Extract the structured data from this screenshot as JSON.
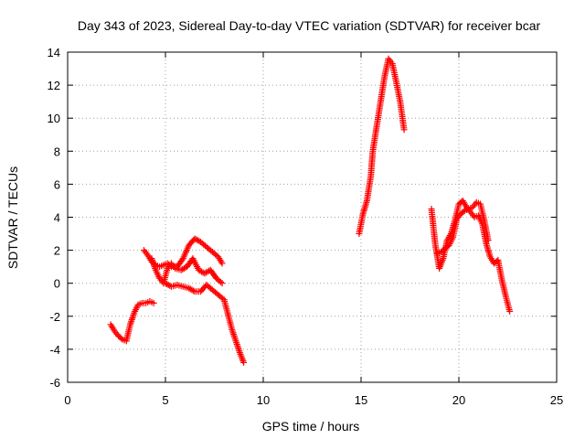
{
  "chart_data": {
    "type": "scatter",
    "title": "Day 343 of 2023, Sidereal Day-to-day VTEC variation (SDTVAR) for receiver bcar",
    "xlabel": "GPS time / hours",
    "ylabel": "SDTVAR / TECUs",
    "xlim": [
      0,
      25
    ],
    "ylim": [
      -6,
      14
    ],
    "xticks": [
      "0",
      "5",
      "10",
      "15",
      "20",
      "25"
    ],
    "yticks": [
      "-6",
      "-4",
      "-2",
      "0",
      "2",
      "4",
      "6",
      "8",
      "10",
      "12",
      "14"
    ],
    "grid": true,
    "marker": "+",
    "color": "#ff0000",
    "series": [
      {
        "x": [
          2.2,
          2.4,
          2.6,
          2.8,
          3.0,
          3.2,
          3.4,
          3.6,
          3.8,
          4.0,
          4.2,
          4.4
        ],
        "y": [
          -2.5,
          -2.9,
          -3.2,
          -3.4,
          -3.5,
          -2.5,
          -1.8,
          -1.3,
          -1.2,
          -1.2,
          -1.1,
          -1.2
        ]
      },
      {
        "x": [
          3.9,
          4.1,
          4.3,
          4.5,
          4.7,
          4.9,
          5.1,
          5.3,
          5.6,
          5.9,
          6.2,
          6.5,
          6.8,
          7.1,
          7.4,
          7.7,
          7.9
        ],
        "y": [
          2.0,
          1.7,
          1.3,
          1.1,
          1.0,
          1.1,
          1.2,
          1.0,
          1.0,
          1.5,
          2.3,
          2.7,
          2.5,
          2.2,
          1.9,
          1.6,
          1.2
        ]
      },
      {
        "x": [
          4.3,
          4.5,
          4.7,
          4.9,
          5.1,
          5.3,
          5.5,
          5.8,
          6.1,
          6.4,
          6.7,
          7.0,
          7.3,
          7.6,
          7.9
        ],
        "y": [
          1.5,
          0.8,
          0.3,
          0.0,
          0.9,
          1.2,
          0.9,
          0.8,
          1.0,
          1.5,
          0.8,
          0.6,
          0.8,
          0.3,
          0.0
        ]
      },
      {
        "x": [
          5.0,
          5.3,
          5.6,
          5.9,
          6.2,
          6.5,
          6.8,
          7.1,
          7.4,
          7.7,
          8.0,
          8.2,
          8.4,
          8.6,
          8.8,
          9.0
        ],
        "y": [
          0.0,
          -0.2,
          -0.1,
          -0.2,
          -0.3,
          -0.5,
          -0.5,
          -0.1,
          -0.4,
          -0.7,
          -1.0,
          -1.9,
          -2.8,
          -3.5,
          -4.2,
          -4.8
        ]
      },
      {
        "x": [
          14.9,
          15.1,
          15.3,
          15.5,
          15.6,
          15.8,
          16.0,
          16.2,
          16.4,
          16.6,
          16.8,
          17.0,
          17.2
        ],
        "y": [
          3.0,
          4.2,
          5.0,
          6.5,
          8.0,
          9.5,
          11.0,
          12.5,
          13.6,
          13.3,
          12.2,
          11.0,
          9.3
        ]
      },
      {
        "x": [
          18.6,
          18.8,
          19.0,
          19.2,
          19.4,
          19.6,
          19.8,
          20.0,
          20.2,
          20.4,
          20.6,
          20.8,
          21.0,
          21.2,
          21.4,
          21.6,
          21.8,
          22.0,
          22.2,
          22.4,
          22.6
        ],
        "y": [
          4.5,
          2.3,
          0.9,
          1.5,
          2.6,
          3.0,
          3.8,
          4.8,
          5.0,
          4.6,
          4.3,
          4.0,
          4.1,
          3.6,
          2.4,
          1.6,
          1.2,
          1.4,
          0.2,
          -0.8,
          -1.7
        ]
      },
      {
        "x": [
          18.9,
          19.1,
          19.3,
          19.5,
          19.7,
          19.9,
          20.1,
          20.3,
          20.5,
          20.7,
          20.9,
          21.1,
          21.3,
          21.5
        ],
        "y": [
          1.8,
          1.9,
          2.1,
          2.3,
          2.8,
          3.9,
          4.2,
          4.4,
          4.5,
          4.6,
          4.9,
          4.8,
          3.8,
          2.6
        ]
      }
    ]
  }
}
